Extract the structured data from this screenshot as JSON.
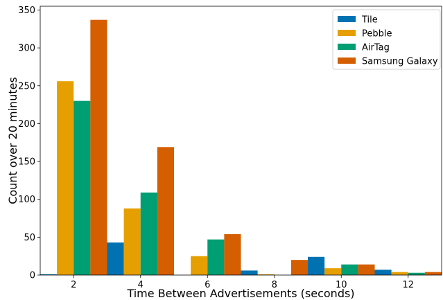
{
  "chart_data": {
    "type": "bar",
    "xlabel": "Time Between Advertisements (seconds)",
    "ylabel": "Count over 20 minutes",
    "xlim": [
      1,
      13
    ],
    "ylim": [
      0,
      355
    ],
    "xticks": [
      2,
      4,
      6,
      8,
      10,
      12
    ],
    "yticks": [
      0,
      50,
      100,
      150,
      200,
      250,
      300,
      350
    ],
    "bin_starts": [
      1,
      3,
      5,
      7,
      9,
      11
    ],
    "bin_width": 2,
    "legend_position": "top-right",
    "grid": false,
    "series": [
      {
        "name": "Tile",
        "color": "#0072B2",
        "values": [
          1,
          43,
          0,
          6,
          24,
          7
        ]
      },
      {
        "name": "Pebble",
        "color": "#E69F00",
        "values": [
          256,
          88,
          25,
          1,
          9,
          4
        ]
      },
      {
        "name": "AirTag",
        "color": "#009E73",
        "values": [
          230,
          109,
          47,
          0,
          14,
          3
        ]
      },
      {
        "name": "Samsung Galaxy",
        "color": "#D55E00",
        "values": [
          337,
          169,
          54,
          20,
          14,
          4
        ]
      }
    ]
  }
}
